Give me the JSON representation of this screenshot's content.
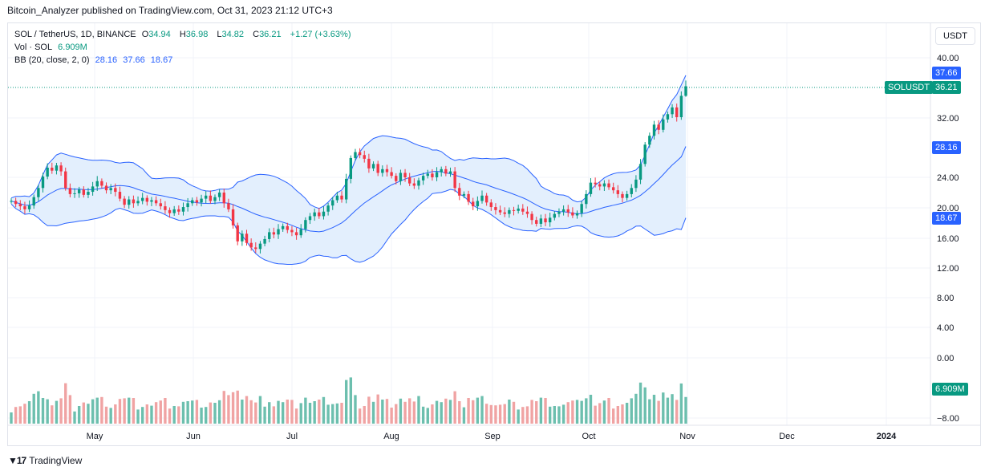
{
  "header": {
    "published": "Bitcoin_Analyzer published on TradingView.com, Oct 31, 2023 21:12 UTC+3"
  },
  "legend": {
    "symbol": "SOL / TetherUS, 1D, BINANCE",
    "open_label": "O",
    "open": "34.94",
    "high_label": "H",
    "high": "36.98",
    "low_label": "L",
    "low": "34.82",
    "close_label": "C",
    "close": "36.21",
    "change": "+1.27 (+3.63%)",
    "vol_label": "Vol · SOL",
    "vol": "6.909M",
    "bb_label": "BB (20, close, 2, 0)",
    "bb_basis": "28.16",
    "bb_upper": "37.66",
    "bb_lower": "18.67"
  },
  "price_axis": {
    "unit": "USDT",
    "ticks": [
      "40.00",
      "32.00",
      "24.00",
      "20.00",
      "16.00",
      "12.00",
      "8.00",
      "4.00",
      "0.00",
      "−8.00"
    ],
    "tags": {
      "upper": "37.66",
      "symbol": "SOLUSDT",
      "last": "36.21",
      "basis": "28.16",
      "lower": "18.67",
      "volume": "6.909M"
    }
  },
  "time_axis": {
    "labels": [
      "May",
      "Jun",
      "Jul",
      "Aug",
      "Sep",
      "Oct",
      "Nov",
      "Dec",
      "2024"
    ]
  },
  "footer": {
    "brand": "TradingView"
  },
  "colors": {
    "up": "#089981",
    "down": "#f23645",
    "band": "#2962ff",
    "band_fill": "#e3effd",
    "vol_up": "#6cbfae",
    "vol_down": "#f0a3a3",
    "grid": "#f0f3fa"
  },
  "chart_data": {
    "type": "candlestick",
    "symbol": "SOL / TetherUS",
    "interval": "1D",
    "x_range": [
      "2023-04-13",
      "2023-12-31"
    ],
    "close_series": [
      20.9,
      20.5,
      20.2,
      19.8,
      20.3,
      21.4,
      22.6,
      24.1,
      25.3,
      24.9,
      25.6,
      24.8,
      22.6,
      21.8,
      21.9,
      22.4,
      21.7,
      22.1,
      22.8,
      23.5,
      22.9,
      22.3,
      22.6,
      22.1,
      21.2,
      20.4,
      21.1,
      20.6,
      20.9,
      21.3,
      20.8,
      21.0,
      20.6,
      20.2,
      19.7,
      19.3,
      19.8,
      19.5,
      20.1,
      20.6,
      21.0,
      20.7,
      21.2,
      21.6,
      20.9,
      21.4,
      22.0,
      20.6,
      19.8,
      17.7,
      15.6,
      16.6,
      15.4,
      14.8,
      14.6,
      15.3,
      15.9,
      16.8,
      16.5,
      17.2,
      17.6,
      17.1,
      16.8,
      16.4,
      17.2,
      18.4,
      18.9,
      19.4,
      18.9,
      19.5,
      20.3,
      21.0,
      21.6,
      21.1,
      23.8,
      26.6,
      27.4,
      27.0,
      26.5,
      25.2,
      25.8,
      24.6,
      25.1,
      24.7,
      24.2,
      23.5,
      24.6,
      24.0,
      23.2,
      22.9,
      23.6,
      24.2,
      24.5,
      24.0,
      24.7,
      25.1,
      24.5,
      24.8,
      22.6,
      21.6,
      21.8,
      20.8,
      20.2,
      20.9,
      21.6,
      20.7,
      20.1,
      19.7,
      19.4,
      19.2,
      19.7,
      19.6,
      19.9,
      19.5,
      19.2,
      18.4,
      17.9,
      18.6,
      18.1,
      18.7,
      19.2,
      19.5,
      19.8,
      19.4,
      19.0,
      19.3,
      20.5,
      21.8,
      23.3,
      23.1,
      22.8,
      23.2,
      22.7,
      22.3,
      21.8,
      21.3,
      21.8,
      22.6,
      23.7,
      25.8,
      28.4,
      29.6,
      31.1,
      30.4,
      31.8,
      32.5,
      33.4,
      32.1,
      34.94,
      36.21
    ],
    "bb_upper_end": 37.66,
    "bb_basis_end": 28.16,
    "bb_lower_end": 18.67,
    "last_ohlc": {
      "open": 34.94,
      "high": 36.98,
      "low": 34.82,
      "close": 36.21
    },
    "last_volume": "6.909M"
  }
}
